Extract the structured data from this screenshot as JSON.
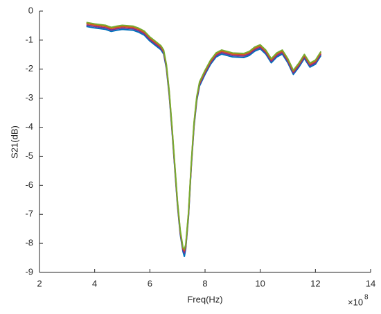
{
  "chart_data": {
    "type": "line",
    "xlabel": "Freq(Hz)",
    "ylabel": "S21(dB)",
    "x_scale_base": "×10",
    "x_scale_exponent": "8",
    "x": [
      3.7,
      4.0,
      4.4,
      4.6,
      4.8,
      5.0,
      5.4,
      5.6,
      5.8,
      6.0,
      6.2,
      6.4,
      6.5,
      6.6,
      6.7,
      6.8,
      6.9,
      7.0,
      7.1,
      7.2,
      7.25,
      7.3,
      7.4,
      7.5,
      7.6,
      7.7,
      7.8,
      8.0,
      8.2,
      8.4,
      8.6,
      8.8,
      9.0,
      9.4,
      9.6,
      9.8,
      10.0,
      10.2,
      10.4,
      10.6,
      10.8,
      11.0,
      11.2,
      11.4,
      11.6,
      11.8,
      12.0,
      12.2
    ],
    "series": [
      {
        "color": "#0072bd",
        "values": [
          -0.53,
          -0.58,
          -0.63,
          -0.7,
          -0.66,
          -0.63,
          -0.66,
          -0.73,
          -0.83,
          -1.03,
          -1.18,
          -1.33,
          -1.48,
          -1.98,
          -2.88,
          -4.08,
          -5.38,
          -6.68,
          -7.68,
          -8.28,
          -8.45,
          -8.18,
          -7.08,
          -5.38,
          -3.98,
          -3.08,
          -2.58,
          -2.18,
          -1.83,
          -1.58,
          -1.48,
          -1.53,
          -1.58,
          -1.6,
          -1.53,
          -1.38,
          -1.3,
          -1.48,
          -1.78,
          -1.58,
          -1.48,
          -1.78,
          -2.18,
          -1.93,
          -1.63,
          -1.93,
          -1.83,
          -1.53
        ]
      },
      {
        "color": "#7e2f8e",
        "values": [
          -0.48,
          -0.53,
          -0.58,
          -0.65,
          -0.61,
          -0.58,
          -0.61,
          -0.68,
          -0.78,
          -0.98,
          -1.13,
          -1.28,
          -1.43,
          -1.93,
          -2.83,
          -4.03,
          -5.33,
          -6.63,
          -7.63,
          -8.23,
          -8.33,
          -8.13,
          -7.03,
          -5.33,
          -3.93,
          -3.03,
          -2.53,
          -2.13,
          -1.78,
          -1.53,
          -1.43,
          -1.48,
          -1.53,
          -1.55,
          -1.48,
          -1.33,
          -1.25,
          -1.43,
          -1.73,
          -1.53,
          -1.43,
          -1.73,
          -2.13,
          -1.88,
          -1.58,
          -1.88,
          -1.78,
          -1.48
        ]
      },
      {
        "color": "#d95319",
        "values": [
          -0.43,
          -0.48,
          -0.53,
          -0.6,
          -0.56,
          -0.53,
          -0.56,
          -0.63,
          -0.73,
          -0.93,
          -1.08,
          -1.23,
          -1.38,
          -1.88,
          -2.78,
          -3.98,
          -5.28,
          -6.58,
          -7.58,
          -8.18,
          -8.25,
          -8.08,
          -6.98,
          -5.28,
          -3.88,
          -2.98,
          -2.48,
          -2.08,
          -1.73,
          -1.48,
          -1.38,
          -1.43,
          -1.48,
          -1.5,
          -1.43,
          -1.28,
          -1.2,
          -1.38,
          -1.68,
          -1.48,
          -1.38,
          -1.68,
          -2.08,
          -1.83,
          -1.53,
          -1.83,
          -1.73,
          -1.43
        ]
      },
      {
        "color": "#77ac30",
        "values": [
          -0.39,
          -0.44,
          -0.49,
          -0.56,
          -0.52,
          -0.49,
          -0.52,
          -0.59,
          -0.69,
          -0.89,
          -1.04,
          -1.19,
          -1.34,
          -1.84,
          -2.74,
          -3.94,
          -5.24,
          -6.54,
          -7.54,
          -8.14,
          -8.2,
          -8.04,
          -6.94,
          -5.24,
          -3.84,
          -2.94,
          -2.44,
          -2.04,
          -1.69,
          -1.44,
          -1.34,
          -1.39,
          -1.44,
          -1.46,
          -1.39,
          -1.24,
          -1.16,
          -1.34,
          -1.64,
          -1.44,
          -1.34,
          -1.64,
          -2.04,
          -1.79,
          -1.49,
          -1.79,
          -1.69,
          -1.39
        ]
      }
    ],
    "xlim": [
      2,
      14
    ],
    "xticks": [
      2,
      4,
      6,
      8,
      10,
      12,
      14
    ],
    "ylim": [
      -9,
      0
    ],
    "yticks": [
      0,
      -1,
      -2,
      -3,
      -4,
      -5,
      -6,
      -7,
      -8,
      -9
    ],
    "grid": false
  }
}
